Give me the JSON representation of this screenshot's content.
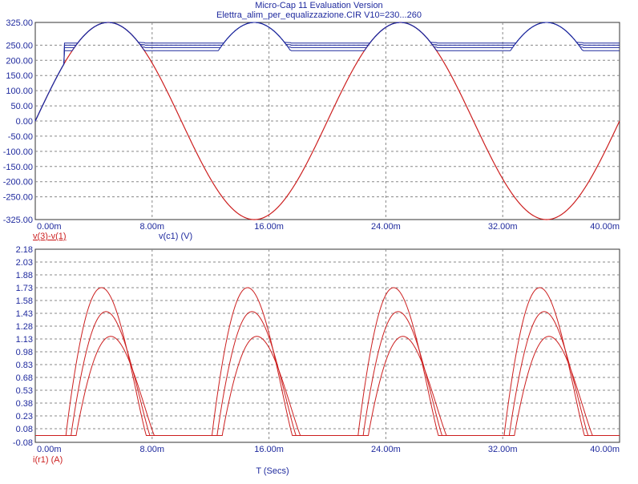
{
  "header": {
    "title": "Micro-Cap 11 Evaluation Version",
    "subtitle": "Elettra_alim_per_equalizzazione.CIR V10=230...260"
  },
  "colors": {
    "voltage_source": "#cc1f1f",
    "capacitor_voltage": "#1f2a9e",
    "current": "#cc1f1f",
    "axis_text": "#1f2a9e",
    "grid": "#888888"
  },
  "chart_data": [
    {
      "type": "line",
      "x_ticks": [
        "0.00m",
        "8.00m",
        "16.00m",
        "24.00m",
        "32.00m",
        "40.00m"
      ],
      "y_ticks": [
        "325.00",
        "250.00",
        "200.00",
        "150.00",
        "100.00",
        "50.00",
        "0.00",
        "-50.00",
        "-100.00",
        "-150.00",
        "-200.00",
        "-250.00",
        "-325.00"
      ],
      "xlim": [
        0,
        40
      ],
      "ylim": [
        -325,
        325
      ],
      "grid": true,
      "trace_labels": [
        "v(3)-v(1)",
        "v(c1) (V)"
      ],
      "series": [
        {
          "label_index": 0,
          "color": "voltage_source",
          "kind": "sine",
          "amplitude": 325,
          "period_ms": 20,
          "phase_offset_ms": 0
        },
        {
          "label_index": 1,
          "color": "capacitor_voltage",
          "kind": "rectified_hold",
          "peak": 325,
          "hold_levels": [
            232,
            242,
            250,
            257
          ]
        }
      ]
    },
    {
      "type": "line",
      "x_ticks": [
        "0.00m",
        "8.00m",
        "16.00m",
        "24.00m",
        "32.00m",
        "40.00m"
      ],
      "y_ticks": [
        "2.18",
        "2.03",
        "1.88",
        "1.73",
        "1.58",
        "1.43",
        "1.28",
        "1.13",
        "0.98",
        "0.83",
        "0.68",
        "0.53",
        "0.38",
        "0.23",
        "0.08",
        "-0.08"
      ],
      "xlim": [
        0,
        40
      ],
      "ylim": [
        -0.08,
        2.18
      ],
      "grid": true,
      "trace_labels": [
        "i(r1) (A)"
      ],
      "xlabel": "T (Secs)",
      "pulse_centers_ms": [
        5.0,
        15.0,
        25.0,
        35.0
      ],
      "series": [
        {
          "peak": 1.73,
          "start_offset_ms": -2.9,
          "end_offset_ms": 2.6
        },
        {
          "peak": 1.45,
          "start_offset_ms": -2.55,
          "end_offset_ms": 2.85
        },
        {
          "peak": 1.16,
          "start_offset_ms": -2.2,
          "end_offset_ms": 3.15
        }
      ]
    }
  ]
}
